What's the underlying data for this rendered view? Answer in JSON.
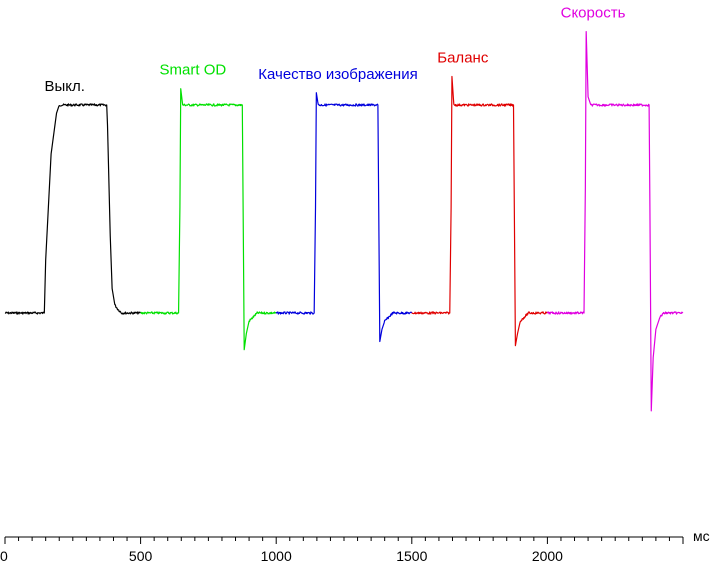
{
  "chart_data": {
    "type": "line",
    "title": "",
    "xlabel": "",
    "ylabel": "",
    "x_unit": "мс",
    "xlim": [
      0,
      2500
    ],
    "ylim": [
      0,
      100
    ],
    "x_ticks": [
      0,
      500,
      1000,
      1500,
      2000
    ],
    "x_tick_labels": [
      "0",
      "500",
      "1000",
      "1500",
      "2000"
    ],
    "grid": false,
    "series": [
      {
        "name": "Выкл.",
        "color": "#000000",
        "x": [
          0,
          145,
          150,
          170,
          190,
          200,
          210,
          220,
          330,
          375,
          378,
          388,
          395,
          405,
          415,
          430,
          500
        ],
        "y": [
          49,
          49,
          62,
          88,
          98,
          100,
          100,
          100,
          100,
          100,
          95,
          68,
          55,
          51,
          50,
          49,
          49
        ]
      },
      {
        "name": "Smart OD",
        "color": "#00e000",
        "x": [
          500,
          640,
          645,
          648,
          655,
          665,
          680,
          870,
          875,
          878,
          882,
          890,
          900,
          915,
          930,
          1000
        ],
        "y": [
          49,
          49,
          75,
          104,
          100,
          100,
          100,
          100,
          100,
          75,
          40,
          44,
          47,
          48,
          49,
          49
        ]
      },
      {
        "name": "Качество изображения",
        "color": "#0000dd",
        "x": [
          1000,
          1140,
          1145,
          1148,
          1155,
          1165,
          1180,
          1370,
          1375,
          1378,
          1382,
          1390,
          1400,
          1415,
          1430,
          1500
        ],
        "y": [
          49,
          49,
          75,
          103,
          100,
          100,
          100,
          100,
          100,
          75,
          42,
          45,
          47,
          48,
          49,
          49
        ]
      },
      {
        "name": "Баланс",
        "color": "#e00000",
        "x": [
          1500,
          1640,
          1645,
          1648,
          1655,
          1665,
          1680,
          1870,
          1875,
          1878,
          1882,
          1890,
          1900,
          1915,
          1930,
          2000
        ],
        "y": [
          49,
          49,
          75,
          107,
          100,
          100,
          100,
          100,
          100,
          75,
          41,
          44,
          47,
          48,
          49,
          49
        ]
      },
      {
        "name": "Скорость",
        "color": "#e000e0",
        "x": [
          2000,
          2135,
          2140,
          2143,
          2150,
          2160,
          2180,
          2370,
          2375,
          2378,
          2383,
          2390,
          2400,
          2415,
          2430,
          2500
        ],
        "y": [
          49,
          49,
          80,
          118,
          102,
          100,
          100,
          100,
          100,
          75,
          25,
          38,
          45,
          48,
          49,
          49
        ]
      }
    ]
  }
}
